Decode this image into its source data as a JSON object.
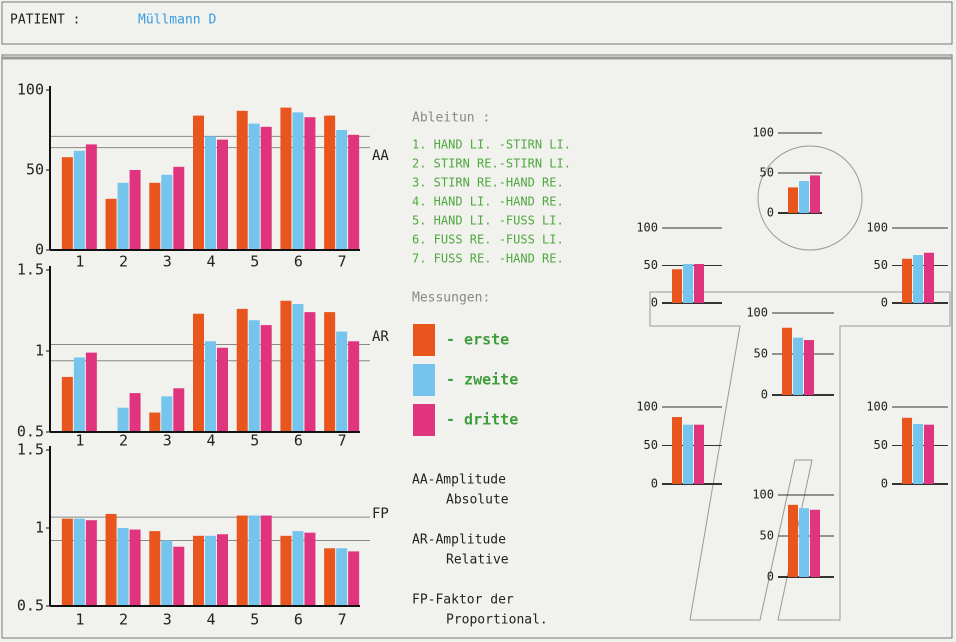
{
  "header": {
    "label": "PATIENT :",
    "patient": "Müllmann D"
  },
  "leads": {
    "title": "Ableitun :",
    "items": [
      "1. HAND LI. -STIRN LI.",
      "2. STIRN RE.-STIRN LI.",
      "3. STIRN RE.-HAND RE.",
      "4. HAND LI. -HAND RE.",
      "5. HAND LI. -FUSS LI.",
      "6. FUSS RE. -FUSS LI.",
      "7. FUSS RE. -HAND RE."
    ]
  },
  "measurements_title": "Messungen:",
  "notes": [
    [
      "AA-Amplitude",
      "Absolute"
    ],
    [
      "AR-Amplitude",
      "Relative"
    ],
    [
      "FP-Faktor der",
      "Proportional."
    ]
  ],
  "chart_data": [
    {
      "type": "bar",
      "label": "AA",
      "categories": [
        "1",
        "2",
        "3",
        "4",
        "5",
        "6",
        "7"
      ],
      "series": [
        {
          "name": "- erste",
          "color": "#e8561e",
          "values": [
            58,
            32,
            42,
            84,
            87,
            89,
            84
          ]
        },
        {
          "name": "- zweite",
          "color": "#74c4ee",
          "values": [
            62,
            42,
            47,
            71,
            79,
            86,
            75
          ]
        },
        {
          "name": "- dritte",
          "color": "#e0357e",
          "values": [
            66,
            50,
            52,
            69,
            77,
            83,
            72
          ]
        }
      ],
      "ylim": [
        0,
        100
      ],
      "yticks": [
        0,
        50,
        100
      ],
      "reference_lines": [
        71,
        64
      ]
    },
    {
      "type": "bar",
      "label": "AR",
      "categories": [
        "1",
        "2",
        "3",
        "4",
        "5",
        "6",
        "7"
      ],
      "series": [
        {
          "color": "#e8561e",
          "values": [
            0.84,
            null,
            0.62,
            1.23,
            1.26,
            1.31,
            1.24
          ]
        },
        {
          "color": "#74c4ee",
          "values": [
            0.96,
            0.65,
            0.72,
            1.06,
            1.19,
            1.29,
            1.12
          ]
        },
        {
          "color": "#e0357e",
          "values": [
            0.99,
            0.74,
            0.77,
            1.02,
            1.16,
            1.24,
            1.06
          ]
        }
      ],
      "ylim": [
        0.5,
        1.5
      ],
      "yticks": [
        0.5,
        1,
        1.5
      ],
      "reference_lines": [
        1.04,
        0.94
      ]
    },
    {
      "type": "bar",
      "label": "FP",
      "categories": [
        "1",
        "2",
        "3",
        "4",
        "5",
        "6",
        "7"
      ],
      "series": [
        {
          "color": "#e8561e",
          "values": [
            1.06,
            1.09,
            0.98,
            0.95,
            1.08,
            0.95,
            0.87
          ]
        },
        {
          "color": "#74c4ee",
          "values": [
            1.06,
            1.0,
            0.92,
            0.95,
            1.08,
            0.98,
            0.87
          ]
        },
        {
          "color": "#e0357e",
          "values": [
            1.05,
            0.99,
            0.88,
            0.96,
            1.08,
            0.97,
            0.85
          ]
        }
      ],
      "ylim": [
        0.5,
        1.5
      ],
      "yticks": [
        0.5,
        1,
        1.5
      ],
      "reference_lines": [
        1.07,
        0.92
      ]
    },
    {
      "type": "mini-bar",
      "categories": [
        null,
        null,
        null
      ],
      "values": [
        32,
        40,
        47
      ],
      "colors": [
        "#e8561e",
        "#74c4ee",
        "#e0357e"
      ],
      "ylim": [
        0,
        100
      ],
      "yticks": [
        0,
        50,
        100
      ]
    },
    {
      "type": "mini-bar",
      "categories": [
        null,
        null,
        null
      ],
      "values": [
        45,
        52,
        52
      ],
      "colors": [
        "#e8561e",
        "#74c4ee",
        "#e0357e"
      ],
      "ylim": [
        0,
        100
      ],
      "yticks": [
        0,
        50,
        100
      ]
    },
    {
      "type": "mini-bar",
      "categories": [
        null,
        null,
        null
      ],
      "values": [
        59,
        64,
        67
      ],
      "colors": [
        "#e8561e",
        "#74c4ee",
        "#e0357e"
      ],
      "ylim": [
        0,
        100
      ],
      "yticks": [
        0,
        50,
        100
      ]
    },
    {
      "type": "mini-bar",
      "categories": [
        null,
        null,
        null
      ],
      "values": [
        82,
        70,
        67
      ],
      "colors": [
        "#e8561e",
        "#74c4ee",
        "#e0357e"
      ],
      "ylim": [
        0,
        100
      ],
      "yticks": [
        0,
        50,
        100
      ]
    },
    {
      "type": "mini-bar",
      "categories": [
        null,
        null,
        null
      ],
      "values": [
        87,
        77,
        77
      ],
      "colors": [
        "#e8561e",
        "#74c4ee",
        "#e0357e"
      ],
      "ylim": [
        0,
        100
      ],
      "yticks": [
        0,
        50,
        100
      ]
    },
    {
      "type": "mini-bar",
      "categories": [
        null,
        null,
        null
      ],
      "values": [
        86,
        78,
        77
      ],
      "colors": [
        "#e8561e",
        "#74c4ee",
        "#e0357e"
      ],
      "ylim": [
        0,
        100
      ],
      "yticks": [
        0,
        50,
        100
      ]
    },
    {
      "type": "mini-bar",
      "categories": [
        null,
        null,
        null
      ],
      "values": [
        88,
        84,
        82
      ],
      "colors": [
        "#e8561e",
        "#74c4ee",
        "#e0357e"
      ],
      "ylim": [
        0,
        100
      ],
      "yticks": [
        0,
        50,
        100
      ]
    }
  ]
}
